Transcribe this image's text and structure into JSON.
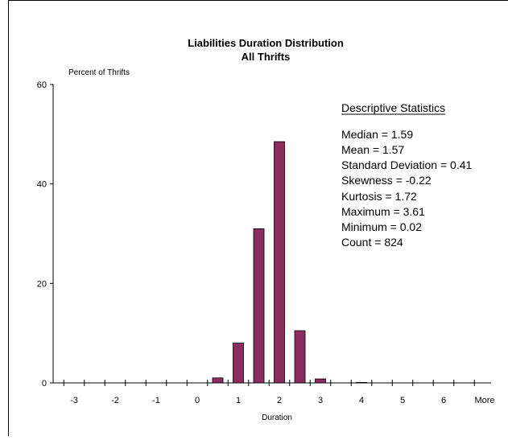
{
  "chart_data": {
    "type": "bar",
    "title": "Liabilities Duration Distribution",
    "subtitle": "All Thrifts",
    "xlabel": "Duration",
    "ylabel": "Percent of Thrifts",
    "ylim": [
      0,
      60
    ],
    "yticks": [
      "0",
      "20",
      "40",
      "60"
    ],
    "xticks": [
      "-3",
      "-2",
      "-1",
      "0",
      "1",
      "2",
      "3",
      "4",
      "5",
      "6",
      "More"
    ],
    "bins": [
      "-3",
      "-2.5",
      "-2",
      "-1.5",
      "-1",
      "-0.5",
      "0",
      "0.5",
      "1",
      "1.5",
      "2",
      "2.5",
      "3",
      "3.5",
      "4",
      "4.5",
      "5",
      "5.5",
      "6",
      "More"
    ],
    "values": [
      0,
      0,
      0,
      0,
      0,
      0,
      0,
      1.0,
      8.0,
      31.0,
      48.5,
      10.5,
      0.8,
      0,
      0.1,
      0,
      0,
      0,
      0,
      0
    ],
    "bar_color": "#8b2d5e",
    "grid": false,
    "legend": "none"
  },
  "stats": {
    "heading": "Descriptive Statistics",
    "lines": [
      "Median = 1.59",
      "Mean = 1.57",
      "Standard Deviation = 0.41",
      "Skewness = -0.22",
      "Kurtosis = 1.72",
      "Maximum = 3.61",
      "Minimum = 0.02",
      "Count = 824"
    ]
  }
}
